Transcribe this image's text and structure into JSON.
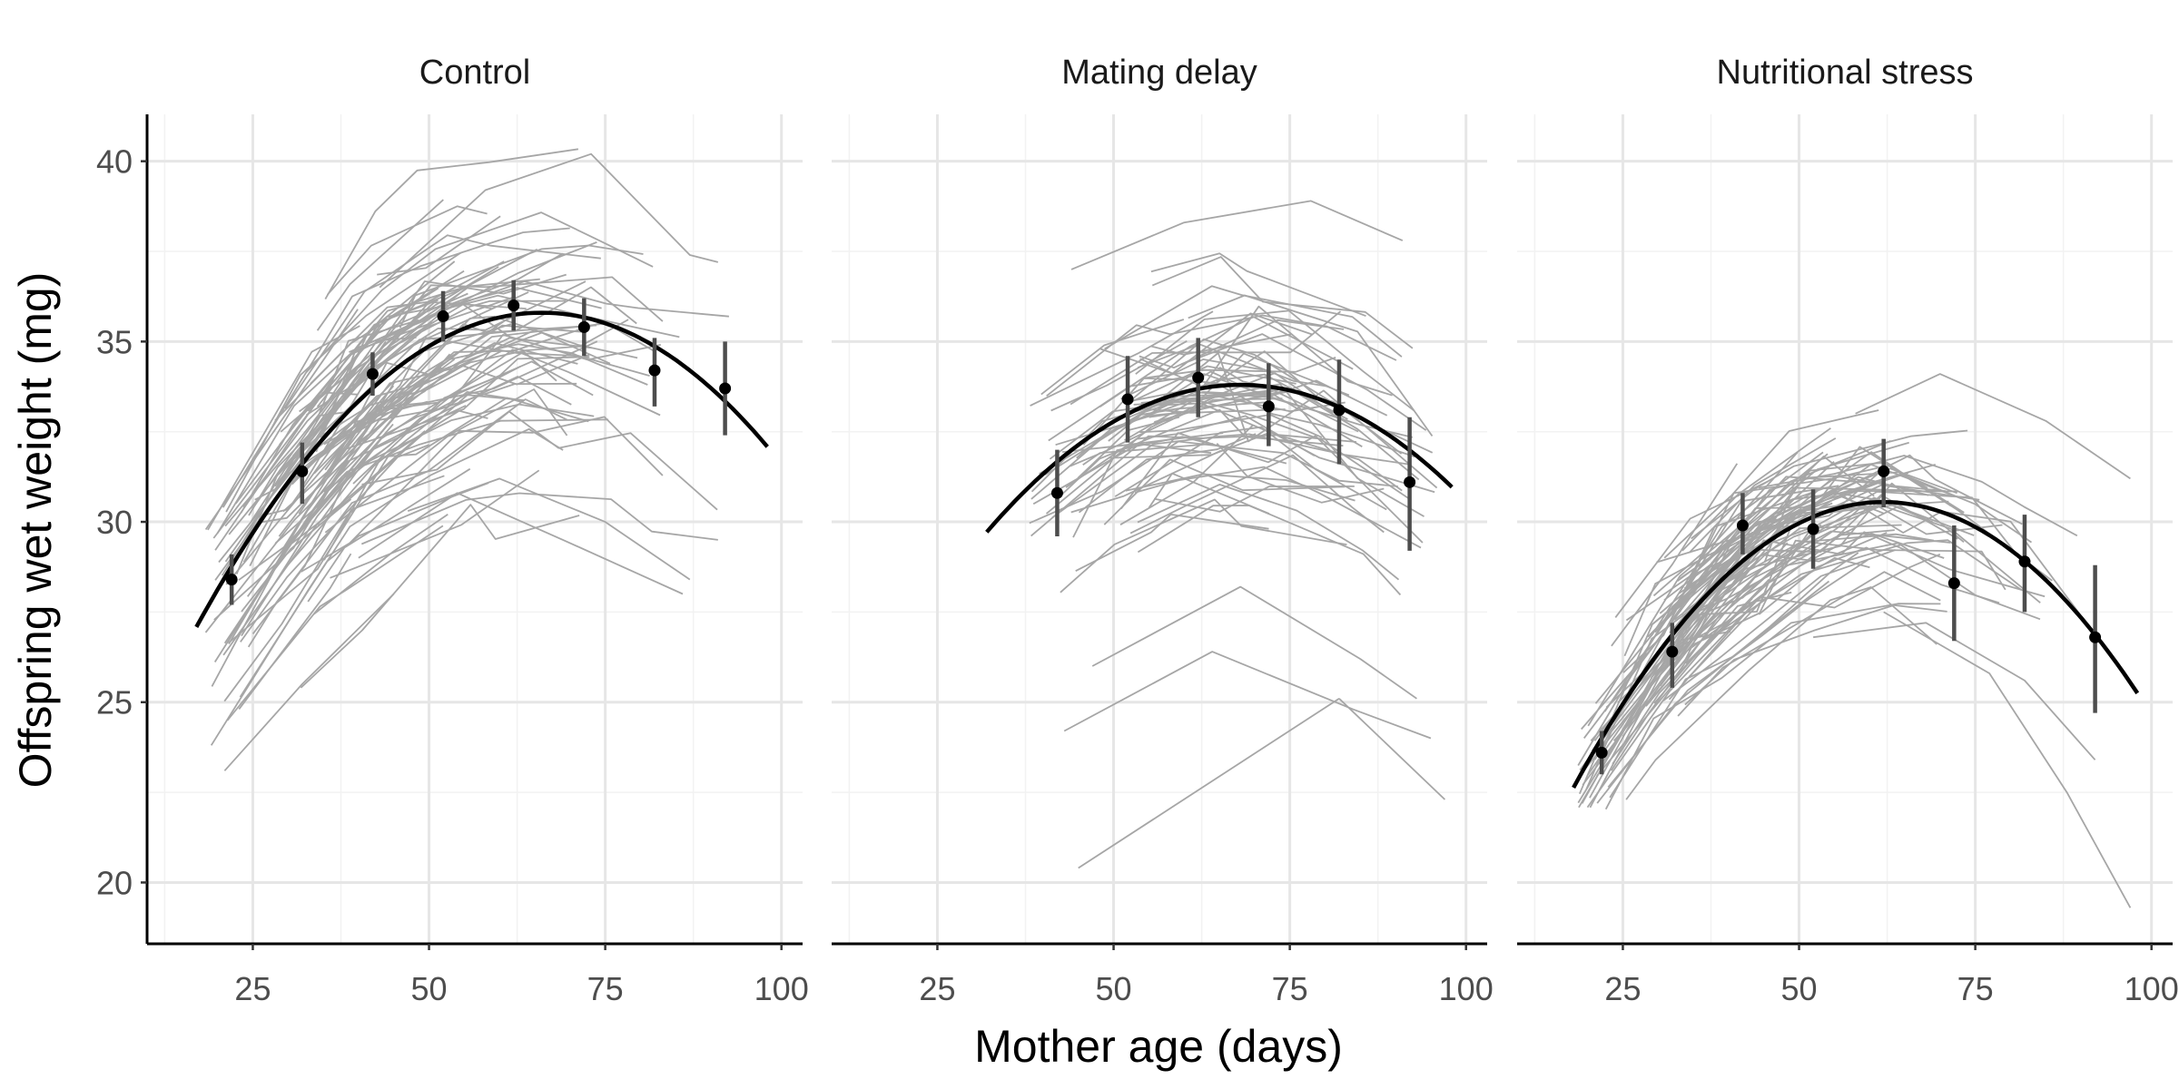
{
  "chart_data": {
    "type": "line",
    "xlabel": "Mother age (days)",
    "ylabel": "Offspring wet weight (mg)",
    "xlim": [
      10,
      103
    ],
    "ylim": [
      18.3,
      41.3
    ],
    "x_ticks": [
      25,
      50,
      75,
      100
    ],
    "y_ticks": [
      20,
      25,
      30,
      35,
      40
    ],
    "grid": true,
    "legend": "none",
    "colors": {
      "individual": "#a6a6a6",
      "fit": "#000000",
      "point": "#000000",
      "errorbar": "#4d4d4d",
      "grid_major": "#e6e6e6",
      "grid_minor": "#f2f2f2",
      "axis": "#000000"
    },
    "panels": [
      {
        "name": "Control",
        "fit": {
          "x_min": 17,
          "x_max": 98,
          "peak_x": 66,
          "peak_y": 35.8,
          "curvature": 0.00363
        },
        "points": [
          {
            "x": 22,
            "y": 28.4,
            "lo": 27.7,
            "hi": 29.1
          },
          {
            "x": 32,
            "y": 31.4,
            "lo": 30.5,
            "hi": 32.2
          },
          {
            "x": 42,
            "y": 34.1,
            "lo": 33.5,
            "hi": 34.7
          },
          {
            "x": 52,
            "y": 35.7,
            "lo": 35.0,
            "hi": 36.4
          },
          {
            "x": 62,
            "y": 36.0,
            "lo": 35.3,
            "hi": 36.7
          },
          {
            "x": 72,
            "y": 35.4,
            "lo": 34.6,
            "hi": 36.2
          },
          {
            "x": 82,
            "y": 34.2,
            "lo": 33.2,
            "hi": 35.1
          },
          {
            "x": 92,
            "y": 33.7,
            "lo": 32.4,
            "hi": 35.0
          }
        ],
        "individual": {
          "count": 110,
          "center": 35.2,
          "spread": 3.5,
          "notable": [
            {
              "x": [
                21,
                32,
                45
              ],
              "y": [
                23.1,
                25.5,
                28.0
              ]
            },
            {
              "x": [
                47,
                60,
                75,
                87
              ],
              "y": [
                30.3,
                31.2,
                30.0,
                28.4
              ]
            },
            {
              "x": [
                40,
                54,
                69,
                86
              ],
              "y": [
                29.0,
                30.8,
                29.5,
                28.0
              ]
            },
            {
              "x": [
                43,
                58,
                73,
                87,
                91
              ],
              "y": [
                36.5,
                39.2,
                40.2,
                37.4,
                37.2
              ]
            }
          ]
        }
      },
      {
        "name": "Mating delay",
        "fit": {
          "x_min": 32,
          "x_max": 98,
          "peak_x": 68,
          "peak_y": 33.8,
          "curvature": 0.00315
        },
        "points": [
          {
            "x": 42,
            "y": 30.8,
            "lo": 29.6,
            "hi": 32.0
          },
          {
            "x": 52,
            "y": 33.4,
            "lo": 32.2,
            "hi": 34.6
          },
          {
            "x": 62,
            "y": 34.0,
            "lo": 32.9,
            "hi": 35.1
          },
          {
            "x": 72,
            "y": 33.2,
            "lo": 32.1,
            "hi": 34.4
          },
          {
            "x": 82,
            "y": 33.1,
            "lo": 31.6,
            "hi": 34.5
          },
          {
            "x": 92,
            "y": 31.1,
            "lo": 29.2,
            "hi": 32.9
          }
        ],
        "individual": {
          "count": 75,
          "center": 33.2,
          "spread": 3.2,
          "notable": [
            {
              "x": [
                45,
                82
              ],
              "y": [
                20.4,
                25.1
              ]
            },
            {
              "x": [
                82,
                97
              ],
              "y": [
                25.1,
                22.3
              ]
            },
            {
              "x": [
                43,
                64,
                84,
                95
              ],
              "y": [
                24.2,
                26.4,
                24.8,
                24.0
              ]
            },
            {
              "x": [
                47,
                68,
                85,
                93
              ],
              "y": [
                26.0,
                28.2,
                26.2,
                25.1
              ]
            },
            {
              "x": [
                44,
                60,
                78,
                91
              ],
              "y": [
                37.0,
                38.3,
                38.9,
                37.8
              ]
            }
          ]
        }
      },
      {
        "name": "Nutritional stress",
        "fit": {
          "x_min": 18,
          "x_max": 98,
          "peak_x": 62,
          "peak_y": 30.55,
          "curvature": 0.00409
        },
        "points": [
          {
            "x": 22,
            "y": 23.6,
            "lo": 23.0,
            "hi": 24.2
          },
          {
            "x": 32,
            "y": 26.4,
            "lo": 25.4,
            "hi": 27.2
          },
          {
            "x": 42,
            "y": 29.9,
            "lo": 29.1,
            "hi": 30.8
          },
          {
            "x": 52,
            "y": 29.8,
            "lo": 28.7,
            "hi": 30.9
          },
          {
            "x": 62,
            "y": 31.4,
            "lo": 30.4,
            "hi": 32.3
          },
          {
            "x": 72,
            "y": 28.3,
            "lo": 26.7,
            "hi": 29.9
          },
          {
            "x": 82,
            "y": 28.9,
            "lo": 27.5,
            "hi": 30.2
          },
          {
            "x": 92,
            "y": 26.8,
            "lo": 24.7,
            "hi": 28.8
          }
        ],
        "individual": {
          "count": 90,
          "center": 30.4,
          "spread": 2.2,
          "notable": [
            {
              "x": [
                62,
                77,
                88,
                97
              ],
              "y": [
                27.5,
                25.8,
                22.5,
                19.3
              ]
            },
            {
              "x": [
                52,
                68,
                82,
                92
              ],
              "y": [
                26.8,
                27.2,
                25.6,
                23.4
              ]
            },
            {
              "x": [
                58,
                70,
                85,
                97
              ],
              "y": [
                33.0,
                34.1,
                32.8,
                31.2
              ]
            }
          ]
        }
      }
    ]
  }
}
